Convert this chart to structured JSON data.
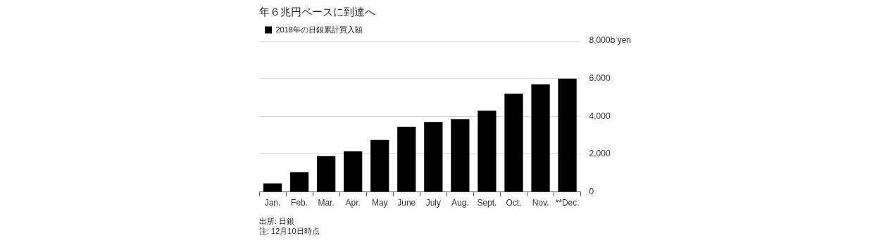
{
  "chart_data": {
    "type": "bar",
    "title": "年６兆円ペースに到達へ",
    "categories": [
      "Jan.",
      "Feb.",
      "Mar.",
      "Apr.",
      "May",
      "June",
      "July",
      "Aug.",
      "Sept.",
      "Oct.",
      "Nov.",
      "**Dec."
    ],
    "series": [
      {
        "name": "2018年の日銀累計買入額",
        "color": "#000000",
        "values": [
          450,
          1050,
          1900,
          2150,
          2750,
          3450,
          3700,
          3850,
          4300,
          5200,
          5700,
          6000
        ]
      }
    ],
    "ylim": [
      0,
      8000
    ],
    "yticks": [
      0,
      {
        "value": 2000,
        "label": "2,000"
      },
      {
        "value": 4000,
        "label": "4,000"
      },
      {
        "value": 6000,
        "label": "6,000"
      },
      {
        "value": 8000,
        "label": "8,000b yen"
      }
    ],
    "grid": "y",
    "legend": "top left",
    "annotations": [
      "出所: 日銀",
      "注: 12月10日時点"
    ]
  }
}
